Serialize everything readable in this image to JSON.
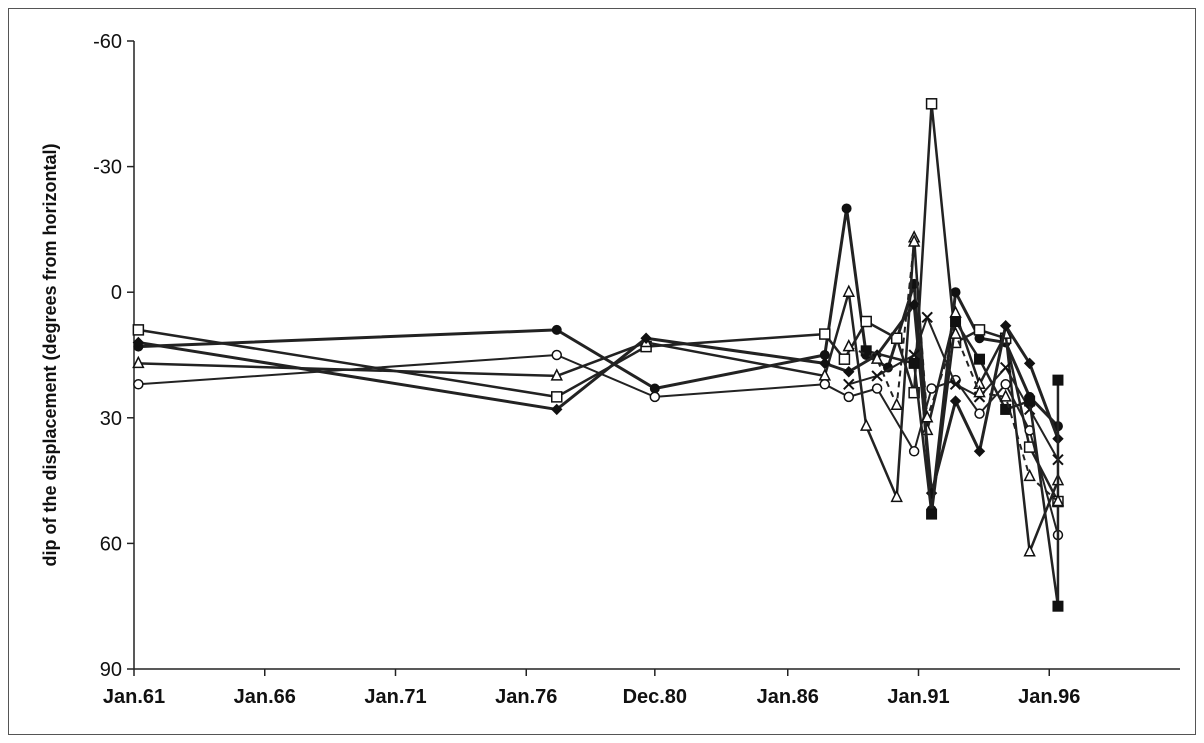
{
  "chart_data": {
    "type": "line",
    "title": "",
    "xlabel": "",
    "ylabel": "dip of the displacement (degrees from horizontal)",
    "y_inverted": true,
    "ylim": [
      -60,
      90
    ],
    "yticks": [
      -60,
      -30,
      0,
      30,
      60,
      90
    ],
    "xlim": [
      "1961-01",
      "2001-01"
    ],
    "xticks": [
      {
        "date": "1961-01",
        "label": "Jan.61"
      },
      {
        "date": "1966-01",
        "label": "Jan.66"
      },
      {
        "date": "1971-01",
        "label": "Jan.71"
      },
      {
        "date": "1976-01",
        "label": "Jan.76"
      },
      {
        "date": "1980-12",
        "label": "Dec.80"
      },
      {
        "date": "1986-01",
        "label": "Jan.86"
      },
      {
        "date": "1991-01",
        "label": "Jan.91"
      },
      {
        "date": "1996-01",
        "label": "Jan.96"
      }
    ],
    "grid": false,
    "legend": "none",
    "series": [
      {
        "marker": "filled-circle",
        "dash": "solid",
        "width": 3,
        "points": [
          [
            "1961-03",
            13
          ],
          [
            "1977-03",
            9
          ],
          [
            "1980-12",
            23
          ],
          [
            "1987-06",
            15
          ],
          [
            "1988-04",
            -20
          ],
          [
            "1989-01",
            15
          ],
          [
            "1989-11",
            18
          ],
          [
            "1990-11",
            -2
          ],
          [
            "1991-07",
            52
          ],
          [
            "1992-06",
            0
          ],
          [
            "1993-05",
            11
          ],
          [
            "1994-05",
            12
          ],
          [
            "1995-04",
            25
          ],
          [
            "1996-05",
            32
          ]
        ]
      },
      {
        "marker": "open-square",
        "dash": "solid",
        "width": 2.5,
        "points": [
          [
            "1961-03",
            9
          ],
          [
            "1977-03",
            25
          ],
          [
            "1980-08",
            13
          ],
          [
            "1987-06",
            10
          ],
          [
            "1988-03",
            16
          ],
          [
            "1989-01",
            7
          ],
          [
            "1990-03",
            11
          ],
          [
            "1990-11",
            24
          ],
          [
            "1991-07",
            -45
          ],
          [
            "1992-06",
            12
          ],
          [
            "1993-05",
            9
          ],
          [
            "1994-05",
            11
          ],
          [
            "1995-04",
            37
          ],
          [
            "1996-05",
            50
          ]
        ]
      },
      {
        "marker": "open-triangle",
        "dash": "solid",
        "width": 2.5,
        "points": [
          [
            "1961-03",
            17
          ],
          [
            "1977-03",
            20
          ],
          [
            "1980-08",
            12
          ],
          [
            "1987-06",
            20
          ],
          [
            "1988-05",
            0
          ],
          [
            "1989-01",
            32
          ],
          [
            "1990-03",
            49
          ],
          [
            "1990-11",
            -13
          ],
          [
            "1991-05",
            33
          ],
          [
            "1992-06",
            5
          ],
          [
            "1993-05",
            22
          ],
          [
            "1994-05",
            10
          ],
          [
            "1995-04",
            62
          ],
          [
            "1996-05",
            45
          ]
        ]
      },
      {
        "marker": "open-circle",
        "dash": "solid",
        "width": 2,
        "points": [
          [
            "1961-03",
            22
          ],
          [
            "1977-03",
            15
          ],
          [
            "1980-12",
            25
          ],
          [
            "1987-06",
            22
          ],
          [
            "1988-05",
            25
          ],
          [
            "1989-06",
            23
          ],
          [
            "1990-11",
            38
          ],
          [
            "1991-07",
            23
          ],
          [
            "1992-06",
            21
          ],
          [
            "1993-05",
            29
          ],
          [
            "1994-05",
            22
          ],
          [
            "1995-04",
            33
          ],
          [
            "1996-05",
            58
          ]
        ]
      },
      {
        "marker": "diamond",
        "dash": "solid",
        "width": 3,
        "points": [
          [
            "1961-03",
            12
          ],
          [
            "1977-03",
            28
          ],
          [
            "1980-08",
            11
          ],
          [
            "1987-06",
            17
          ],
          [
            "1988-05",
            19
          ],
          [
            "1989-06",
            15
          ],
          [
            "1990-11",
            3
          ],
          [
            "1991-07",
            48
          ],
          [
            "1992-06",
            26
          ],
          [
            "1993-05",
            38
          ],
          [
            "1994-05",
            8
          ],
          [
            "1995-04",
            17
          ],
          [
            "1996-05",
            35
          ]
        ]
      },
      {
        "marker": "x",
        "dash": "solid",
        "width": 2,
        "points": [
          [
            "1988-05",
            22
          ],
          [
            "1989-06",
            20
          ],
          [
            "1990-11",
            15
          ],
          [
            "1991-05",
            6
          ],
          [
            "1992-06",
            22
          ],
          [
            "1993-05",
            25
          ],
          [
            "1994-05",
            18
          ],
          [
            "1995-04",
            28
          ],
          [
            "1996-05",
            40
          ]
        ]
      },
      {
        "marker": "filled-square",
        "dash": "solid",
        "width": 2.5,
        "points": [
          [
            "1989-01",
            14
          ],
          [
            "1990-11",
            17
          ],
          [
            "1991-07",
            53
          ],
          [
            "1992-06",
            7
          ],
          [
            "1993-05",
            16
          ],
          [
            "1994-05",
            28
          ],
          [
            "1995-04",
            26
          ],
          [
            "1996-05",
            75
          ],
          [
            "1996-05",
            21
          ]
        ]
      },
      {
        "marker": "open-triangle",
        "dash": "dashed",
        "width": 2,
        "points": [
          [
            "1988-05",
            13
          ],
          [
            "1989-06",
            16
          ],
          [
            "1990-03",
            27
          ],
          [
            "1990-11",
            -12
          ],
          [
            "1991-05",
            30
          ],
          [
            "1992-06",
            10
          ],
          [
            "1993-05",
            24
          ],
          [
            "1994-05",
            25
          ],
          [
            "1995-04",
            44
          ],
          [
            "1996-05",
            50
          ]
        ]
      }
    ]
  }
}
